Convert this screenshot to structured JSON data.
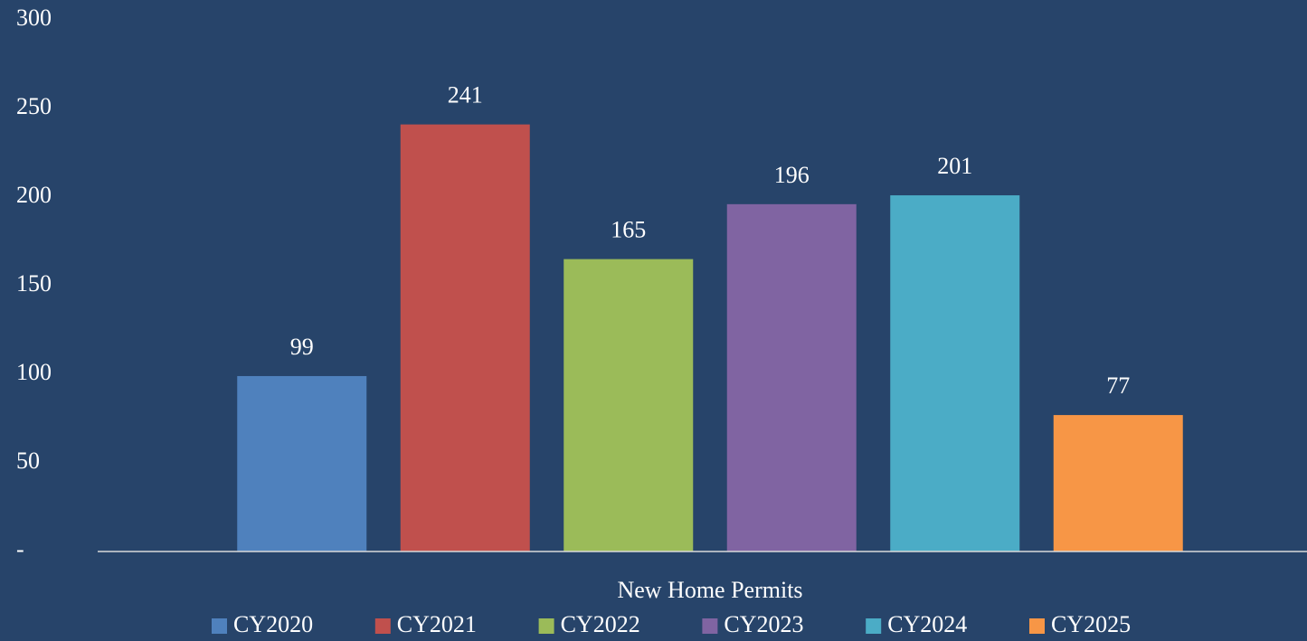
{
  "chart_data": {
    "type": "bar",
    "categories": [
      "New Home Permits"
    ],
    "series": [
      {
        "name": "CY2020",
        "color": "#4f81bd",
        "values": [
          99
        ]
      },
      {
        "name": "CY2021",
        "color": "#c0504d",
        "values": [
          241
        ]
      },
      {
        "name": "CY2022",
        "color": "#9bbb59",
        "values": [
          165
        ]
      },
      {
        "name": "CY2023",
        "color": "#8064a2",
        "values": [
          196
        ]
      },
      {
        "name": "CY2024",
        "color": "#4bacc6",
        "values": [
          201
        ]
      },
      {
        "name": "CY2025",
        "color": "#f79646",
        "values": [
          77
        ]
      }
    ],
    "ylim": [
      0,
      300
    ],
    "yticks": [
      {
        "value": 0,
        "label": "-"
      },
      50,
      100,
      150,
      200,
      250,
      300
    ],
    "grid": false,
    "legend": "bottom"
  }
}
